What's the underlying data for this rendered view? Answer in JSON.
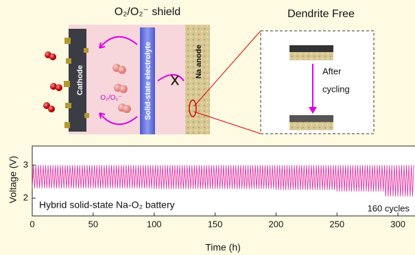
{
  "diagram": {
    "title_left": "O₂/O₂⁻ shield",
    "title_right": "Dendrite Free",
    "cathode": "Cathode",
    "electrolyte": "Solid-state electrolyte",
    "anode": "Na anode",
    "species": "O₂/O₂⁻",
    "after_1": "After",
    "after_2": "cycling"
  },
  "chart_data": {
    "type": "line",
    "ylabel": "Voltage (V)",
    "xlabel": "Time (h)",
    "annotation_left": "Hybrid solid-state Na-O₂ battery",
    "annotation_right": "160 cycles",
    "color": "#e0209a",
    "xlim": [
      0,
      314
    ],
    "ylim": [
      1.46,
      3.58
    ],
    "xticks": [
      0,
      50,
      100,
      150,
      200,
      250,
      300
    ],
    "yticks": [
      2,
      3
    ],
    "x": [
      0,
      1,
      2,
      3,
      4,
      5,
      6,
      7,
      8,
      9,
      10,
      11,
      12,
      13,
      14,
      15,
      16,
      17,
      18,
      19,
      20,
      21,
      22,
      23,
      24,
      25,
      26,
      27,
      28,
      29,
      30,
      31,
      32,
      33,
      34,
      35,
      36,
      37,
      38,
      39,
      40,
      41,
      42,
      43,
      44,
      45,
      46,
      47,
      48,
      49,
      50,
      51,
      52,
      53,
      54,
      55,
      56,
      57,
      58,
      59,
      60,
      61,
      62,
      63,
      64,
      65,
      66,
      67,
      68,
      69,
      70,
      71,
      72,
      73,
      74,
      75,
      76,
      77,
      78,
      79,
      80,
      81,
      82,
      83,
      84,
      85,
      86,
      87,
      88,
      89,
      90,
      91,
      92,
      93,
      94,
      95,
      96,
      97,
      98,
      99,
      100,
      101,
      102,
      103,
      104,
      105,
      106,
      107,
      108,
      109,
      110,
      111,
      112,
      113,
      114,
      115,
      116,
      117,
      118,
      119,
      120,
      121,
      122,
      123,
      124,
      125,
      126,
      127,
      128,
      129,
      130,
      131,
      132,
      133,
      134,
      135,
      136,
      137,
      138,
      139,
      140,
      141,
      142,
      143,
      144,
      145,
      146,
      147,
      148,
      149,
      150,
      151,
      152,
      153,
      154,
      155,
      156,
      157,
      158,
      159,
      160,
      161,
      162,
      163,
      164,
      165,
      166,
      167,
      168,
      169,
      170,
      171,
      172,
      173,
      174,
      175,
      176,
      177,
      178,
      179,
      180,
      181,
      182,
      183,
      184,
      185,
      186,
      187,
      188,
      189,
      190,
      191,
      192,
      193,
      194,
      195,
      196,
      197,
      198,
      199,
      200,
      201,
      202,
      203,
      204,
      205,
      206,
      207,
      208,
      209,
      210,
      211,
      212,
      213,
      214,
      215,
      216,
      217,
      218,
      219,
      220,
      221,
      222,
      223,
      224,
      225,
      226,
      227,
      228,
      229,
      230,
      231,
      232,
      233,
      234,
      235,
      236,
      237,
      238,
      239,
      240,
      241,
      242,
      243,
      244,
      245,
      246,
      247,
      248,
      249,
      250,
      251,
      252,
      253,
      254,
      255,
      256,
      257,
      258,
      259,
      260,
      261,
      262,
      263,
      264,
      265,
      266,
      267,
      268,
      269,
      270,
      271,
      272,
      273,
      274,
      275,
      276,
      277,
      278,
      279,
      280,
      281,
      282,
      283,
      284,
      285,
      286,
      287,
      288,
      289,
      290,
      291,
      292,
      293,
      294,
      295,
      296,
      297,
      298,
      299,
      300,
      301,
      302,
      303,
      304,
      305,
      306,
      307,
      308,
      309,
      310,
      311,
      312,
      313
    ],
    "values": [
      2.3,
      3,
      2.3,
      3,
      2.3,
      3,
      2.3,
      3,
      2.3,
      3,
      2.3,
      3,
      2.3,
      3,
      2.3,
      3,
      2.3,
      3,
      2.3,
      3,
      2.3,
      3,
      2.3,
      3,
      2.3,
      3,
      2.3,
      3,
      2.3,
      3,
      2.3,
      3,
      2.3,
      3,
      2.3,
      3,
      2.3,
      3,
      2.3,
      3,
      2.3,
      3,
      2.3,
      3,
      2.3,
      3,
      2.3,
      3,
      2.3,
      3,
      2.3,
      3,
      2.3,
      3,
      2.3,
      3,
      2.3,
      3,
      2.3,
      3,
      2.3,
      3,
      2.3,
      3,
      2.3,
      3,
      2.3,
      3,
      2.3,
      3,
      2.3,
      3,
      2.3,
      3,
      2.3,
      3,
      2.3,
      3,
      2.3,
      3,
      2.3,
      3,
      2.3,
      3,
      2.3,
      3,
      2.3,
      3,
      2.3,
      3,
      2.3,
      3,
      2.3,
      3,
      2.3,
      3,
      2.3,
      3,
      2.3,
      3,
      2.28,
      3,
      2.28,
      3,
      2.28,
      3,
      2.28,
      3,
      2.28,
      3,
      2.28,
      3,
      2.28,
      3,
      2.28,
      3,
      2.28,
      3,
      2.28,
      3,
      2.28,
      3,
      2.28,
      3,
      2.28,
      3,
      2.28,
      3,
      2.28,
      3,
      2.28,
      3,
      2.28,
      3,
      2.28,
      3,
      2.28,
      3,
      2.28,
      3,
      2.28,
      3,
      2.28,
      3,
      2.28,
      3,
      2.28,
      3,
      2.28,
      3,
      2.28,
      3,
      2.28,
      3,
      2.28,
      3,
      2.28,
      3,
      2.28,
      3,
      2.28,
      3,
      2.28,
      3,
      2.28,
      3,
      2.28,
      3,
      2.28,
      3,
      2.28,
      3,
      2.28,
      3,
      2.28,
      3,
      2.28,
      3,
      2.28,
      3,
      2.28,
      3,
      2.28,
      3,
      2.28,
      3,
      2.28,
      3,
      2.28,
      3,
      2.28,
      3,
      2.28,
      3,
      2.28,
      3,
      2.28,
      3,
      2.28,
      3,
      2.25,
      3,
      2.25,
      3,
      2.25,
      3,
      2.25,
      3,
      2.25,
      3,
      2.25,
      3,
      2.25,
      3,
      2.25,
      3,
      2.25,
      3,
      2.25,
      3,
      2.25,
      3,
      2.25,
      3,
      2.25,
      3,
      2.25,
      3,
      2.25,
      3,
      2.25,
      3,
      2.25,
      3,
      2.25,
      3,
      2.25,
      3,
      2.25,
      3,
      2.25,
      3,
      2.25,
      3,
      2.25,
      3,
      2.25,
      3,
      2.25,
      3,
      2.2,
      3,
      2.2,
      3,
      2.2,
      3,
      2.2,
      3,
      2.2,
      3,
      2.2,
      3,
      2.2,
      3,
      2.2,
      3,
      2.2,
      3,
      2.2,
      3,
      2.2,
      3,
      2.2,
      3,
      2.2,
      3,
      2.2,
      3,
      2.2,
      3,
      2.2,
      3,
      2.2,
      3,
      2.2,
      3,
      2.2,
      3,
      2.2,
      3,
      2.05,
      3,
      2.05,
      3,
      2.05,
      3,
      2.05,
      3,
      2.05,
      3,
      2.05,
      3,
      2.05,
      3,
      2.05,
      3,
      2.05,
      3,
      2.05,
      3,
      2.05,
      3,
      2.05,
      3
    ]
  }
}
